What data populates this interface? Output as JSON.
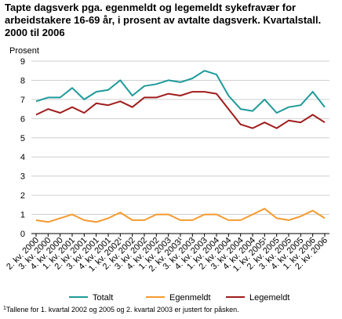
{
  "title_lines": [
    "Tapte dagsverk pga. egenmeldt og legemeldt sykefravær for",
    "arbeidstakere 16-69 år, i prosent av avtalte dagsverk. Kvartalstall.",
    "2000 til 2006"
  ],
  "footnote": {
    "mark": "1",
    "text": "Tallene for 1. kvartal 2002 og 2005 og 2. kvartal 2003 er justert for påsken."
  },
  "chart_data": {
    "type": "line",
    "title": "Tapte dagsverk pga. egenmeldt og legemeldt sykefravær for arbeidstakere 16-69 år, i prosent av avtalte dagsverk. Kvartalstall. 2000 til 2006",
    "ylabel": "Prosent",
    "xlabel": "",
    "ylim": [
      0,
      9
    ],
    "yticks": [
      0,
      1,
      2,
      3,
      4,
      5,
      6,
      7,
      8,
      9
    ],
    "grid": true,
    "legend_position": "bottom",
    "categories": [
      "2. kv. 2000",
      "3. kv. 2000",
      "4. kv. 2000",
      "1. kv. 2001",
      "2. kv. 2001",
      "3. kv. 2001",
      "4. kv. 2001",
      "1. kv. 2002¹",
      "2. kv. 2002",
      "3. kv. 2002",
      "4. kv. 2002",
      "1. kv. 2003",
      "2. kv. 2003¹",
      "3. kv. 2003",
      "4. kv. 2003",
      "1. kv. 2004",
      "2. kv. 2004",
      "3. kv. 2004",
      "4. kv. 2004",
      "1. kv. 2005¹",
      "2. kv. 2005",
      "3. kv. 2005",
      "4. kv. 2005",
      "1. kv. 2006",
      "2. kv. 2006"
    ],
    "series": [
      {
        "name": "Totalt",
        "color": "#1f9a9a",
        "values": [
          6.9,
          7.1,
          7.1,
          7.6,
          7.0,
          7.4,
          7.5,
          8.0,
          7.2,
          7.7,
          7.8,
          8.0,
          7.9,
          8.1,
          8.5,
          8.3,
          7.2,
          6.5,
          6.4,
          7.0,
          6.3,
          6.6,
          6.7,
          7.4,
          6.6
        ]
      },
      {
        "name": "Egenmeldt",
        "color": "#f59a2e",
        "values": [
          0.7,
          0.6,
          0.8,
          1.0,
          0.7,
          0.6,
          0.8,
          1.1,
          0.7,
          0.7,
          1.0,
          1.0,
          0.7,
          0.7,
          1.0,
          1.0,
          0.7,
          0.7,
          1.0,
          1.3,
          0.8,
          0.7,
          0.9,
          1.2,
          0.8
        ]
      },
      {
        "name": "Legemeldt",
        "color": "#a01c1c",
        "values": [
          6.2,
          6.5,
          6.3,
          6.6,
          6.3,
          6.8,
          6.7,
          6.9,
          6.6,
          7.1,
          7.1,
          7.3,
          7.2,
          7.4,
          7.4,
          7.3,
          6.5,
          5.7,
          5.5,
          5.8,
          5.5,
          5.9,
          5.8,
          6.2,
          5.8
        ]
      }
    ]
  }
}
